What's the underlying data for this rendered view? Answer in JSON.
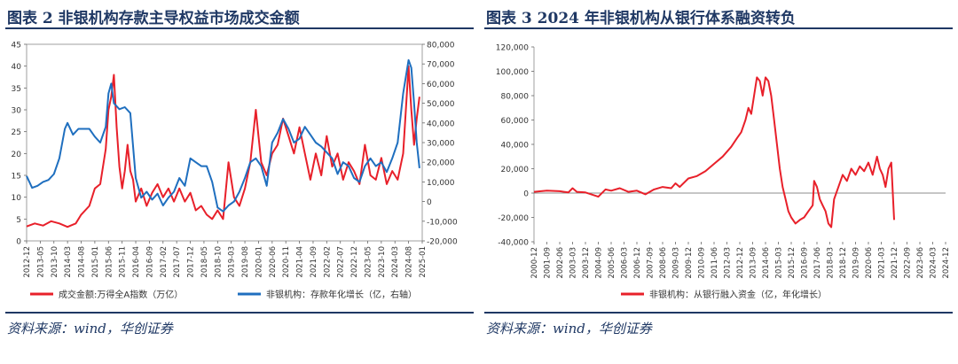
{
  "panels": {
    "left": {
      "title": "图表 2   非银机构存款主导权益市场成交金额",
      "source": "资料来源：wind，华创证券"
    },
    "right": {
      "title": "图表 3   2024 年非银机构从银行体系融资转负",
      "source": "资料来源：wind，华创证券"
    }
  },
  "chart_data": [
    {
      "type": "line",
      "x_tick_labels": [
        "2012-12",
        "2013-05",
        "2013-10",
        "2014-03",
        "2014-08",
        "2015-01",
        "2015-06",
        "2015-11",
        "2016-04",
        "2016-09",
        "2017-02",
        "2017-07",
        "2017-12",
        "2018-05",
        "2018-10",
        "2019-03",
        "2019-08",
        "2020-01",
        "2020-06",
        "2020-11",
        "2021-04",
        "2021-09",
        "2022-02",
        "2022-07",
        "2022-12",
        "2023-05",
        "2023-10",
        "2024-03",
        "2024-08",
        "2025-01"
      ],
      "x_range": [
        0,
        145
      ],
      "yleft": {
        "min": 0,
        "max": 45,
        "ticks": [
          0,
          5,
          10,
          15,
          20,
          25,
          30,
          35,
          40,
          45
        ]
      },
      "yright": {
        "min": -20000,
        "max": 80000,
        "ticks": [
          -20000,
          -10000,
          0,
          10000,
          20000,
          30000,
          40000,
          50000,
          60000,
          70000,
          80000
        ],
        "tick_labels": [
          "-20,000",
          "-10,000",
          "0",
          "10,000",
          "20,000",
          "30,000",
          "40,000",
          "50,000",
          "60,000",
          "70,000",
          "80,000"
        ]
      },
      "series": [
        {
          "name": "成交金额:万得全A指数（万亿）",
          "axis": "left",
          "color": "#e8202a",
          "points": [
            [
              0,
              3.3
            ],
            [
              3,
              4
            ],
            [
              6,
              3.5
            ],
            [
              9,
              4.5
            ],
            [
              12,
              4
            ],
            [
              15,
              3.2
            ],
            [
              18,
              4
            ],
            [
              20,
              6
            ],
            [
              23,
              8
            ],
            [
              25,
              12
            ],
            [
              27,
              13
            ],
            [
              29,
              21
            ],
            [
              30,
              30
            ],
            [
              31,
              33
            ],
            [
              32,
              38
            ],
            [
              33,
              26
            ],
            [
              34,
              17
            ],
            [
              35,
              12
            ],
            [
              36,
              16
            ],
            [
              37,
              22
            ],
            [
              38,
              16
            ],
            [
              39,
              14
            ],
            [
              40,
              9
            ],
            [
              42,
              12
            ],
            [
              44,
              8
            ],
            [
              46,
              11
            ],
            [
              48,
              13
            ],
            [
              50,
              10
            ],
            [
              52,
              12
            ],
            [
              54,
              9
            ],
            [
              56,
              12
            ],
            [
              58,
              9
            ],
            [
              60,
              11
            ],
            [
              62,
              7
            ],
            [
              64,
              8
            ],
            [
              66,
              6
            ],
            [
              68,
              5
            ],
            [
              70,
              7
            ],
            [
              72,
              5
            ],
            [
              74,
              18
            ],
            [
              76,
              10
            ],
            [
              78,
              8
            ],
            [
              80,
              12
            ],
            [
              82,
              18
            ],
            [
              84,
              30
            ],
            [
              85,
              24
            ],
            [
              86,
              18
            ],
            [
              88,
              15
            ],
            [
              90,
              20
            ],
            [
              92,
              22
            ],
            [
              94,
              28
            ],
            [
              96,
              24
            ],
            [
              98,
              20
            ],
            [
              100,
              26
            ],
            [
              102,
              20
            ],
            [
              104,
              14
            ],
            [
              106,
              20
            ],
            [
              108,
              15
            ],
            [
              110,
              24
            ],
            [
              112,
              17
            ],
            [
              114,
              20
            ],
            [
              116,
              14
            ],
            [
              118,
              18
            ],
            [
              120,
              16
            ],
            [
              122,
              13
            ],
            [
              124,
              22
            ],
            [
              126,
              15
            ],
            [
              128,
              14
            ],
            [
              130,
              19
            ],
            [
              132,
              13
            ],
            [
              134,
              16
            ],
            [
              136,
              14
            ],
            [
              138,
              20
            ],
            [
              140,
              40
            ],
            [
              141,
              30
            ],
            [
              142,
              22
            ],
            [
              143,
              28
            ],
            [
              144,
              33
            ]
          ]
        },
        {
          "name": "非银机构：存款年化增长（亿，右轴）",
          "axis": "right",
          "color": "#1f6fbf",
          "points": [
            [
              0,
              13000
            ],
            [
              2,
              7000
            ],
            [
              4,
              8000
            ],
            [
              6,
              10000
            ],
            [
              8,
              11000
            ],
            [
              10,
              14000
            ],
            [
              12,
              22000
            ],
            [
              14,
              37000
            ],
            [
              15,
              40000
            ],
            [
              17,
              34000
            ],
            [
              19,
              37000
            ],
            [
              21,
              37000
            ],
            [
              23,
              37000
            ],
            [
              25,
              33000
            ],
            [
              27,
              30000
            ],
            [
              29,
              38000
            ],
            [
              30,
              55000
            ],
            [
              31,
              60000
            ],
            [
              32,
              50000
            ],
            [
              34,
              47000
            ],
            [
              36,
              48000
            ],
            [
              38,
              45000
            ],
            [
              40,
              12000
            ],
            [
              42,
              2000
            ],
            [
              44,
              5000
            ],
            [
              46,
              1000
            ],
            [
              48,
              4000
            ],
            [
              50,
              -2000
            ],
            [
              52,
              2000
            ],
            [
              54,
              5000
            ],
            [
              56,
              12000
            ],
            [
              58,
              8000
            ],
            [
              60,
              22000
            ],
            [
              62,
              20000
            ],
            [
              64,
              18000
            ],
            [
              66,
              18000
            ],
            [
              68,
              10000
            ],
            [
              70,
              -3000
            ],
            [
              72,
              -5000
            ],
            [
              74,
              -2000
            ],
            [
              76,
              0
            ],
            [
              78,
              5000
            ],
            [
              80,
              12000
            ],
            [
              82,
              20000
            ],
            [
              84,
              22000
            ],
            [
              86,
              18000
            ],
            [
              88,
              8000
            ],
            [
              90,
              30000
            ],
            [
              92,
              35000
            ],
            [
              94,
              42000
            ],
            [
              96,
              37000
            ],
            [
              98,
              30000
            ],
            [
              100,
              32000
            ],
            [
              102,
              38000
            ],
            [
              104,
              34000
            ],
            [
              106,
              30000
            ],
            [
              108,
              28000
            ],
            [
              110,
              25000
            ],
            [
              112,
              22000
            ],
            [
              114,
              14000
            ],
            [
              116,
              20000
            ],
            [
              118,
              18000
            ],
            [
              120,
              12000
            ],
            [
              122,
              10000
            ],
            [
              124,
              18000
            ],
            [
              126,
              22000
            ],
            [
              128,
              18000
            ],
            [
              130,
              20000
            ],
            [
              132,
              15000
            ],
            [
              134,
              22000
            ],
            [
              136,
              30000
            ],
            [
              138,
              55000
            ],
            [
              140,
              72000
            ],
            [
              141,
              68000
            ],
            [
              142,
              50000
            ],
            [
              143,
              30000
            ],
            [
              144,
              17000
            ]
          ]
        }
      ]
    },
    {
      "type": "line",
      "x_tick_labels": [
        "2000-12",
        "2001-09",
        "2002-06",
        "2003-03",
        "2003-12",
        "2004-09",
        "2005-06",
        "2006-03",
        "2006-12",
        "2007-09",
        "2008-06",
        "2009-03",
        "2009-12",
        "2010-09",
        "2011-06",
        "2012-03",
        "2012-12",
        "2013-09",
        "2014-06",
        "2015-03",
        "2015-12",
        "2016-09",
        "2017-06",
        "2018-03",
        "2018-12",
        "2019-09",
        "2020-06",
        "2021-03",
        "2021-12",
        "2022-09",
        "2023-06",
        "2024-03",
        "2024-12"
      ],
      "x_range": [
        0,
        288
      ],
      "y": {
        "min": -40000,
        "max": 120000,
        "ticks": [
          -40000,
          -20000,
          0,
          20000,
          40000,
          60000,
          80000,
          100000,
          120000
        ],
        "tick_labels": [
          "-40,000",
          "-20,000",
          "0",
          "20,000",
          "40,000",
          "60,000",
          "80,000",
          "100,000",
          "120,000"
        ]
      },
      "series": [
        {
          "name": "非银机构：从银行融入资金（亿，年化增长）",
          "color": "#e8202a",
          "points": [
            [
              0,
              1000
            ],
            [
              9,
              2000
            ],
            [
              18,
              1500
            ],
            [
              24,
              500
            ],
            [
              27,
              4000
            ],
            [
              30,
              1000
            ],
            [
              36,
              500
            ],
            [
              45,
              -3000
            ],
            [
              50,
              3000
            ],
            [
              54,
              2000
            ],
            [
              60,
              4000
            ],
            [
              66,
              1000
            ],
            [
              72,
              2000
            ],
            [
              78,
              -1000
            ],
            [
              84,
              3000
            ],
            [
              90,
              5000
            ],
            [
              96,
              4000
            ],
            [
              99,
              8000
            ],
            [
              102,
              5000
            ],
            [
              108,
              12000
            ],
            [
              114,
              14000
            ],
            [
              120,
              18000
            ],
            [
              126,
              24000
            ],
            [
              132,
              30000
            ],
            [
              138,
              38000
            ],
            [
              142,
              45000
            ],
            [
              145,
              50000
            ],
            [
              148,
              60000
            ],
            [
              150,
              70000
            ],
            [
              152,
              65000
            ],
            [
              154,
              80000
            ],
            [
              156,
              95000
            ],
            [
              158,
              92000
            ],
            [
              160,
              80000
            ],
            [
              162,
              95000
            ],
            [
              164,
              92000
            ],
            [
              166,
              80000
            ],
            [
              168,
              60000
            ],
            [
              170,
              40000
            ],
            [
              172,
              20000
            ],
            [
              174,
              5000
            ],
            [
              176,
              -5000
            ],
            [
              178,
              -15000
            ],
            [
              180,
              -20000
            ],
            [
              183,
              -25000
            ],
            [
              186,
              -22000
            ],
            [
              189,
              -20000
            ],
            [
              192,
              -15000
            ],
            [
              195,
              -10000
            ],
            [
              196,
              10000
            ],
            [
              198,
              5000
            ],
            [
              200,
              -5000
            ],
            [
              202,
              -10000
            ],
            [
              204,
              -15000
            ],
            [
              206,
              -25000
            ],
            [
              208,
              -28000
            ],
            [
              210,
              -5000
            ],
            [
              213,
              5000
            ],
            [
              216,
              15000
            ],
            [
              219,
              10000
            ],
            [
              222,
              20000
            ],
            [
              225,
              15000
            ],
            [
              228,
              22000
            ],
            [
              231,
              18000
            ],
            [
              234,
              25000
            ],
            [
              237,
              15000
            ],
            [
              240,
              30000
            ],
            [
              242,
              20000
            ],
            [
              244,
              15000
            ],
            [
              246,
              5000
            ],
            [
              248,
              20000
            ],
            [
              250,
              25000
            ],
            [
              252,
              -22000
            ]
          ]
        }
      ]
    }
  ]
}
